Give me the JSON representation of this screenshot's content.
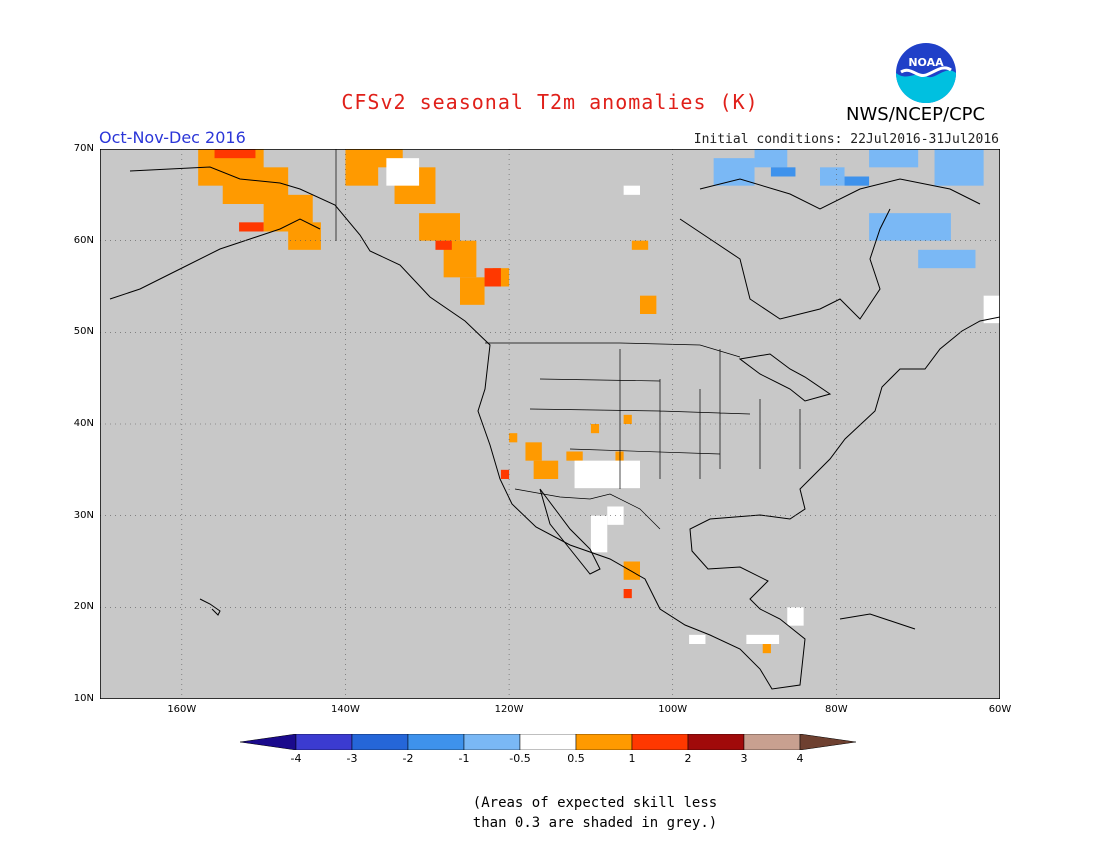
{
  "title": "CFSv2 seasonal T2m anomalies (K)",
  "season": "Oct-Nov-Dec 2016",
  "initial_conditions": "Initial conditions: 22Jul2016-31Jul2016",
  "agency": "NWS/NCEP/CPC",
  "logo_text": "NOAA",
  "footnote_line1": "(Areas of expected skill less",
  "footnote_line2": "than 0.3 are shaded in grey.)",
  "map": {
    "lon_range": [
      -170,
      -60
    ],
    "lat_range": [
      10,
      70
    ],
    "lat_ticks": [
      {
        "value": 70,
        "label": "70N"
      },
      {
        "value": 60,
        "label": "60N"
      },
      {
        "value": 50,
        "label": "50N"
      },
      {
        "value": 40,
        "label": "40N"
      },
      {
        "value": 30,
        "label": "30N"
      },
      {
        "value": 20,
        "label": "20N"
      },
      {
        "value": 10,
        "label": "10N"
      }
    ],
    "lon_ticks": [
      {
        "value": -160,
        "label": "160W"
      },
      {
        "value": -140,
        "label": "140W"
      },
      {
        "value": -120,
        "label": "120W"
      },
      {
        "value": -100,
        "label": "100W"
      },
      {
        "value": -80,
        "label": "80W"
      },
      {
        "value": -60,
        "label": "60W"
      }
    ],
    "grey_color": "#c8c8c8",
    "grid_line": "dotted"
  },
  "colorbar": {
    "colors": [
      "#1a0a8c",
      "#3b3bd0",
      "#2566d8",
      "#3e92ec",
      "#7ab8f5",
      "#ffffff",
      "#ff9a00",
      "#ff3800",
      "#a00a0a",
      "#c8a090",
      "#6e4030"
    ],
    "tick_labels": [
      "-4",
      "-3",
      "-2",
      "-1",
      "-0.5",
      "0.5",
      "1",
      "2",
      "3",
      "4"
    ]
  },
  "anomaly_regions": [
    {
      "category": "0.5 to 1",
      "color": "#ff9a00",
      "cells": [
        [
          -158,
          66,
          8,
          4
        ],
        [
          -155,
          64,
          8,
          4
        ],
        [
          -150,
          61,
          6,
          4
        ],
        [
          -147,
          59,
          4,
          3
        ],
        [
          -140,
          66,
          4,
          4
        ],
        [
          -137,
          68,
          4,
          3
        ],
        [
          -134,
          64,
          5,
          4
        ],
        [
          -131,
          60,
          5,
          3
        ],
        [
          -128,
          56,
          4,
          4
        ],
        [
          -126,
          53,
          3,
          3
        ],
        [
          -122,
          55,
          2,
          2
        ],
        [
          -120,
          38,
          1,
          1
        ],
        [
          -118,
          36,
          2,
          2
        ],
        [
          -117,
          34,
          3,
          2
        ],
        [
          -113,
          36,
          2,
          1
        ],
        [
          -110,
          39,
          1,
          1
        ],
        [
          -107,
          36,
          1,
          1
        ],
        [
          -106,
          40,
          1,
          1
        ],
        [
          -106,
          23,
          2,
          2
        ],
        [
          -89,
          15,
          1,
          1
        ],
        [
          -105,
          59,
          2,
          1
        ],
        [
          -104,
          52,
          2,
          2
        ]
      ]
    },
    {
      "category": "1 to 2",
      "color": "#ff3800",
      "cells": [
        [
          -156,
          69,
          5,
          1
        ],
        [
          -153,
          61,
          3,
          1
        ],
        [
          -129,
          59,
          2,
          1
        ],
        [
          -123,
          55,
          2,
          2
        ],
        [
          -121,
          34,
          1,
          1
        ],
        [
          -106,
          21,
          1,
          1
        ]
      ]
    },
    {
      "category": "-0.5 to 0.5",
      "color": "#ffffff",
      "cells": [
        [
          -135,
          66,
          4,
          3
        ],
        [
          -112,
          33,
          8,
          3
        ],
        [
          -108,
          29,
          2,
          2
        ],
        [
          -110,
          26,
          2,
          4
        ],
        [
          -98,
          16,
          2,
          1
        ],
        [
          -86,
          18,
          2,
          2
        ],
        [
          -91,
          16,
          4,
          1
        ],
        [
          -106,
          65,
          2,
          1
        ],
        [
          -62,
          51,
          3,
          3
        ]
      ]
    },
    {
      "category": "-1 to -0.5",
      "color": "#7ab8f5",
      "cells": [
        [
          -95,
          66,
          5,
          3
        ],
        [
          -90,
          68,
          4,
          2
        ],
        [
          -82,
          66,
          3,
          2
        ],
        [
          -76,
          68,
          6,
          2
        ],
        [
          -68,
          66,
          6,
          4
        ],
        [
          -76,
          60,
          10,
          3
        ],
        [
          -70,
          57,
          7,
          2
        ]
      ]
    },
    {
      "category": "-2 to -1",
      "color": "#3e92ec",
      "cells": [
        [
          -88,
          67,
          3,
          1
        ],
        [
          -79,
          66,
          3,
          1
        ]
      ]
    }
  ]
}
